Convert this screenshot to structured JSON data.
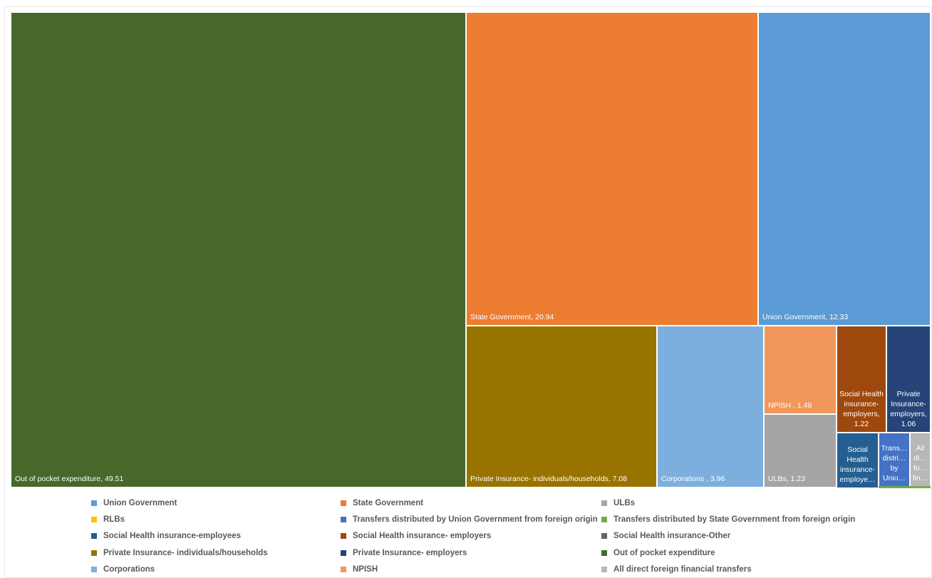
{
  "chart_data": {
    "type": "treemap",
    "title": "",
    "series": [
      {
        "name": "Out of pocket expenditure",
        "value": 49.51,
        "color": "#46682b",
        "label": "Out of pocket expenditure, 49.51",
        "label_style": "bl"
      },
      {
        "name": "State Government",
        "value": 20.94,
        "color": "#ed7d31",
        "label": "State Government, 20.94",
        "label_style": "bl"
      },
      {
        "name": "Union Government",
        "value": 12.33,
        "color": "#5b9bd5",
        "label": "Union Government, 12.33",
        "label_style": "bl"
      },
      {
        "name": "Private Insurance- individuals/households",
        "value": 7.08,
        "color": "#997300",
        "label": "Private Insurance- individuals/households, 7.08",
        "label_style": "bl"
      },
      {
        "name": "Corporations",
        "value": 3.96,
        "color": "#7cafdd",
        "label": "Corporations , 3.96",
        "label_style": "bl"
      },
      {
        "name": "NPISH",
        "value": 1.48,
        "color": "#f1975a",
        "label": "NPISH , 1.48",
        "label_style": "bl"
      },
      {
        "name": "ULBs",
        "value": 1.23,
        "color": "#a5a5a5",
        "label": "ULBs, 1.23",
        "label_style": "bl"
      },
      {
        "name": "Social Health insurance- employers",
        "value": 1.22,
        "color": "#9e480e",
        "label": "Social Health insurance-employers, 1.22",
        "label_style": "wrap"
      },
      {
        "name": "Private Insurance- employers",
        "value": 1.06,
        "color": "#264478",
        "label": "Private Insurance-employers, 1.06",
        "label_style": "wrap"
      },
      {
        "name": "Social Health insurance-employees",
        "value": null,
        "color": "#255e91",
        "label": "Social Health insurance-employe…",
        "label_style": "wrap"
      },
      {
        "name": "Transfers distributed by Union Government from foreign origin",
        "value": null,
        "color": "#4472c4",
        "label": "Trans… distri… by Unio…",
        "label_style": "wrap"
      },
      {
        "name": "All direct foreign financial transfers",
        "value": null,
        "color": "#b7b7b7",
        "label": "All di… fo… fin…",
        "label_style": "wrap"
      },
      {
        "name": "Transfers distributed by State Government from foreign origin",
        "value": null,
        "color": "#70ad47",
        "label": "",
        "label_style": "none"
      }
    ],
    "legend": {
      "placement": "bottom",
      "entries": [
        {
          "label": "Union Government",
          "color": "#5b9bd5"
        },
        {
          "label": "State Government",
          "color": "#ed7d31"
        },
        {
          "label": "ULBs",
          "color": "#a5a5a5"
        },
        {
          "label": "RLBs",
          "color": "#ffc000"
        },
        {
          "label": "Transfers distributed by Union Government from foreign origin",
          "color": "#4472c4"
        },
        {
          "label": "Transfers distributed by State Government from foreign origin",
          "color": "#70ad47"
        },
        {
          "label": "Social Health insurance-employees",
          "color": "#255e91"
        },
        {
          "label": "Social Health insurance- employers",
          "color": "#9e480e"
        },
        {
          "label": "Social Health insurance-Other",
          "color": "#636363"
        },
        {
          "label": "Private Insurance- individuals/households",
          "color": "#997300"
        },
        {
          "label": "Private Insurance- employers",
          "color": "#264478"
        },
        {
          "label": "Out of pocket expenditure",
          "color": "#46682b"
        },
        {
          "label": "Corporations",
          "color": "#7cafdd"
        },
        {
          "label": "NPISH",
          "color": "#f1975a"
        },
        {
          "label": "All direct foreign financial transfers",
          "color": "#b7b7b7"
        }
      ]
    }
  }
}
